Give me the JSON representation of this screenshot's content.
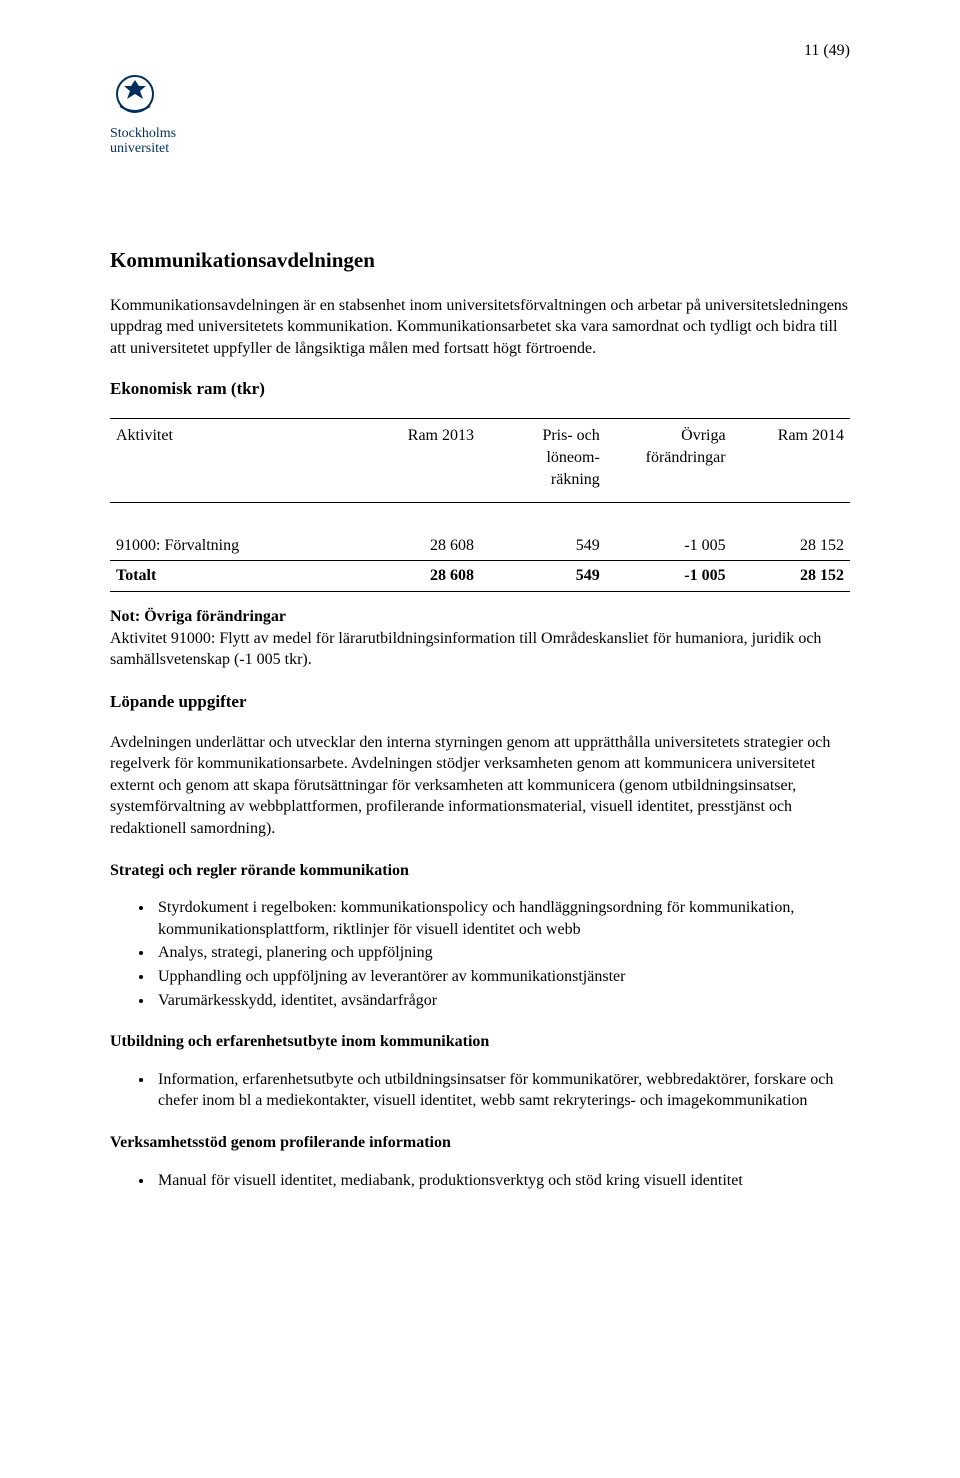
{
  "page_number": "11 (49)",
  "logo": {
    "primary_color": "#002f5f",
    "line1": "Stockholms",
    "line2": "universitet"
  },
  "title": "Kommunikationsavdelningen",
  "intro_para": "Kommunikationsavdelningen är en stabsenhet inom universitetsförvaltningen och arbetar på universitetsledningens uppdrag med universitetets kommunikation. Kommunikationsarbetet ska vara samordnat och tydligt och bidra till att universitetet uppfyller de långsiktiga målen med fortsatt högt förtroende.",
  "econ_heading": "Ekonomisk ram (tkr)",
  "table": {
    "columns": [
      "Aktivitet",
      "Ram 2013",
      "Pris- och löneom-räkning",
      "Övriga förändringar",
      "Ram 2014"
    ],
    "col_widths": [
      "34%",
      "16%",
      "17%",
      "17%",
      "16%"
    ],
    "rows": [
      {
        "label": "91000: Förvaltning",
        "values": [
          "28 608",
          "549",
          "-1 005",
          "28 152"
        ]
      }
    ],
    "total_label": "Totalt",
    "total_values": [
      "28 608",
      "549",
      "-1 005",
      "28 152"
    ]
  },
  "note": {
    "title": "Not: Övriga förändringar",
    "body": "Aktivitet 91000: Flytt av medel för lärarutbildningsinformation till Områdeskansliet för humaniora, juridik och samhällsvetenskap (-1 005 tkr)."
  },
  "lopande_heading": "Löpande uppgifter",
  "lopande_para": "Avdelningen underlättar och utvecklar den interna styrningen genom att upprätthålla universitetets strategier och regelverk för kommunikationsarbete. Avdelningen stödjer verksamheten genom att kommunicera universitetet externt och genom att skapa förutsättningar för verksamheten att kommunicera (genom utbildningsinsatser, systemförvaltning av webbplattformen, profilerande informationsmaterial, visuell identitet, presstjänst och redaktionell samordning).",
  "sections": [
    {
      "heading": "Strategi och regler rörande kommunikation",
      "bullets": [
        "Styrdokument i regelboken: kommunikationspolicy och handläggningsordning för kommunikation, kommunikationsplattform, riktlinjer för visuell identitet och webb",
        "Analys, strategi, planering och uppföljning",
        "Upphandling och uppföljning av leverantörer av kommunikationstjänster",
        "Varumärkesskydd, identitet, avsändarfrågor"
      ]
    },
    {
      "heading": "Utbildning och erfarenhetsutbyte inom kommunikation",
      "bullets": [
        "Information, erfarenhetsutbyte och utbildningsinsatser för kommunikatörer, webbredaktörer, forskare och chefer inom bl a mediekontakter, visuell identitet, webb samt rekryterings- och imagekommunikation"
      ]
    },
    {
      "heading": "Verksamhetsstöd genom profilerande information",
      "bullets": [
        "Manual för visuell identitet, mediabank, produktionsverktyg och stöd kring visuell identitet"
      ]
    }
  ]
}
